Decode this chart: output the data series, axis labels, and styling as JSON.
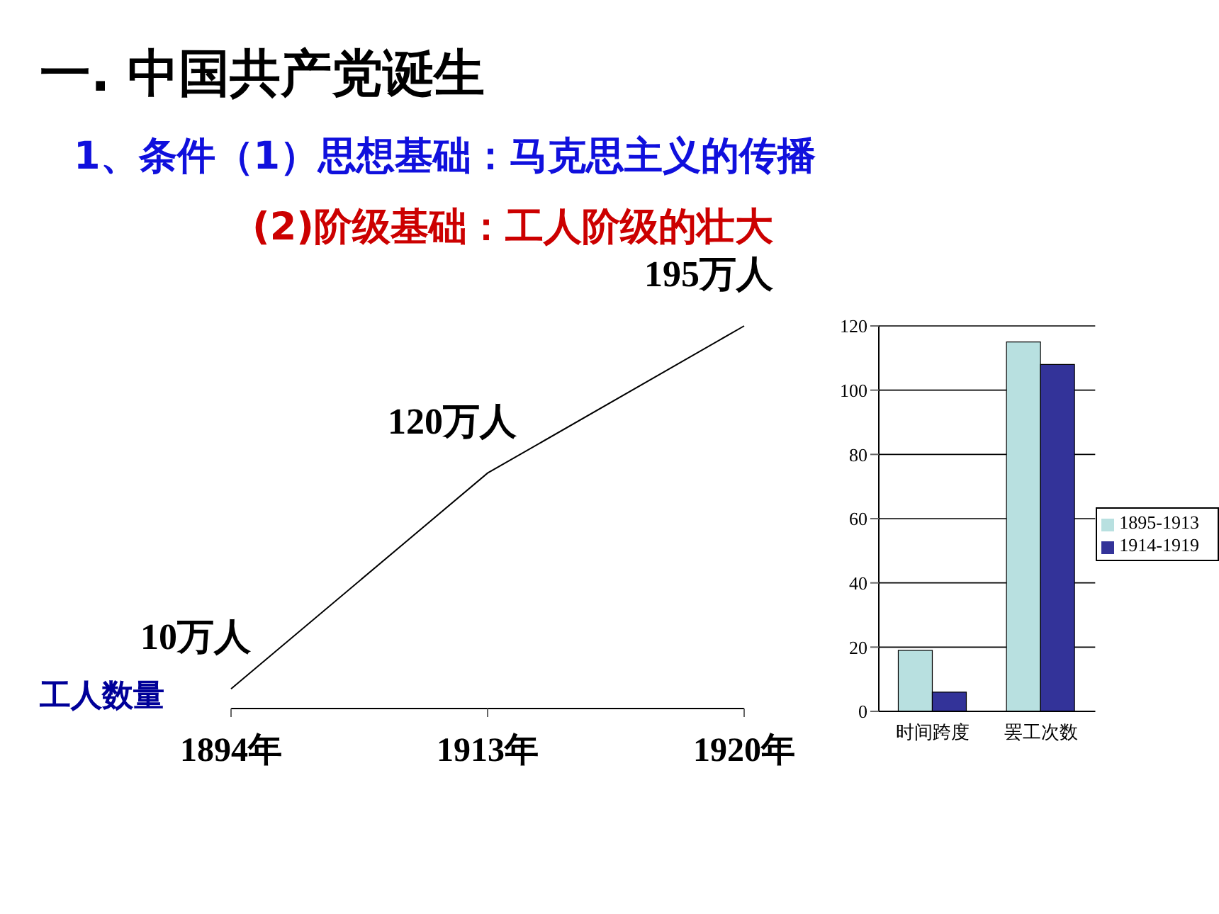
{
  "chart_data": [
    {
      "type": "line",
      "title": "一. 中国共产党诞生",
      "subtitle": "1、条件（1）思想基础：马克思主义的传播",
      "annotations": [
        "(2)阶级基础：工人阶级的壮大"
      ],
      "ylabel": "工人数量",
      "categories": [
        "1894年",
        "1913年",
        "1920年"
      ],
      "series": [
        {
          "color": "#000000",
          "values": [
            10,
            120,
            195
          ],
          "value_labels": [
            "10万人",
            "120万人",
            "195万人"
          ]
        }
      ],
      "tick_labels": "x",
      "grid": false,
      "legend": false
    },
    {
      "type": "bar",
      "categories": [
        "时间跨度",
        "罢工次数"
      ],
      "series": [
        {
          "name": "1895-1913",
          "color": "#b8e0e0",
          "values": [
            19,
            115
          ]
        },
        {
          "name": "1914-1919",
          "color": "#333399",
          "values": [
            6,
            108
          ]
        }
      ],
      "ylim": [
        0,
        120
      ],
      "yticks": [
        0,
        20,
        40,
        60,
        80,
        100,
        120
      ],
      "grid": "y",
      "legend": "right"
    }
  ]
}
